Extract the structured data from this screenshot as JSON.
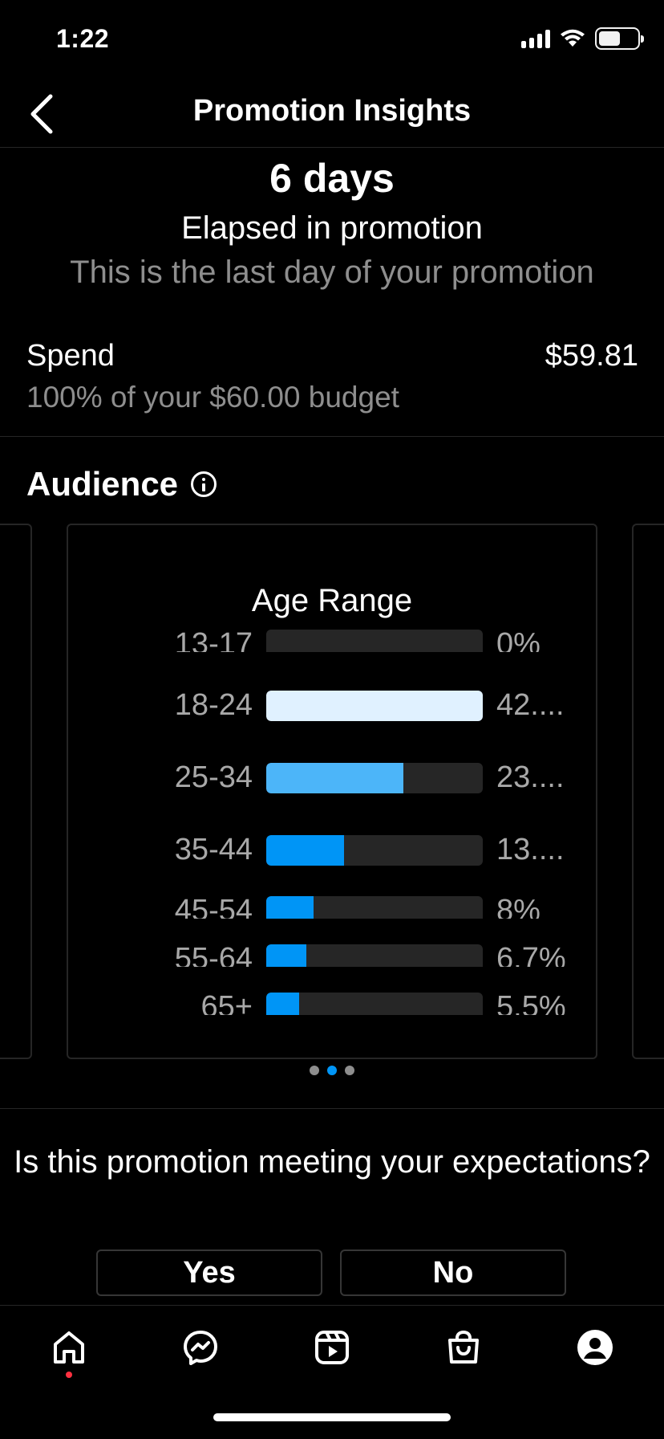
{
  "status_bar": {
    "time": "1:22"
  },
  "header": {
    "title": "Promotion Insights",
    "back_icon": "chevron-left-icon"
  },
  "summary": {
    "days": "6 days",
    "elapsed": "Elapsed in promotion",
    "note": "This is the last day of your promotion"
  },
  "spend": {
    "label": "Spend",
    "value": "$59.81",
    "subtitle": "100% of your $60.00 budget"
  },
  "audience": {
    "title": "Audience",
    "info_icon": "info-icon",
    "age_chart": {
      "title": "Age Range",
      "rows": [
        {
          "label": "13-17",
          "percent_text": "0%",
          "value": 0,
          "color": "#262626"
        },
        {
          "label": "18-24",
          "percent_text": "42....",
          "value": 42,
          "color": "#e0f1ff"
        },
        {
          "label": "25-34",
          "percent_text": "23....",
          "value": 23,
          "color": "#4cb5f9"
        },
        {
          "label": "35-44",
          "percent_text": "13....",
          "value": 13,
          "color": "#0095f6"
        },
        {
          "label": "45-54",
          "percent_text": "8%",
          "value": 8,
          "color": "#0095f6"
        },
        {
          "label": "55-64",
          "percent_text": "6.7%",
          "value": 6.7,
          "color": "#0095f6"
        },
        {
          "label": "65+",
          "percent_text": "5.5%",
          "value": 5.5,
          "color": "#0095f6"
        }
      ]
    },
    "pager": {
      "count": 3,
      "active_index": 1
    }
  },
  "feedback": {
    "question": "Is this promotion meeting your expectations?",
    "yes_label": "Yes",
    "no_label": "No"
  },
  "tab_bar": {
    "tabs": [
      "home-icon",
      "messenger-icon",
      "reels-icon",
      "shop-icon",
      "profile-icon"
    ],
    "active": "home-icon"
  },
  "colors": {
    "accent": "#0095f6",
    "background": "#000000",
    "notification": "#ff3040"
  },
  "chart_data": {
    "type": "bar",
    "title": "Age Range",
    "categories": [
      "13-17",
      "18-24",
      "25-34",
      "35-44",
      "45-54",
      "55-64",
      "65+"
    ],
    "values": [
      0,
      42,
      23,
      13,
      8,
      6.7,
      5.5
    ],
    "value_labels": [
      "0%",
      "42....",
      "23....",
      "13....",
      "8%",
      "6.7%",
      "5.5%"
    ],
    "orientation": "horizontal",
    "xlim": [
      0,
      100
    ]
  }
}
